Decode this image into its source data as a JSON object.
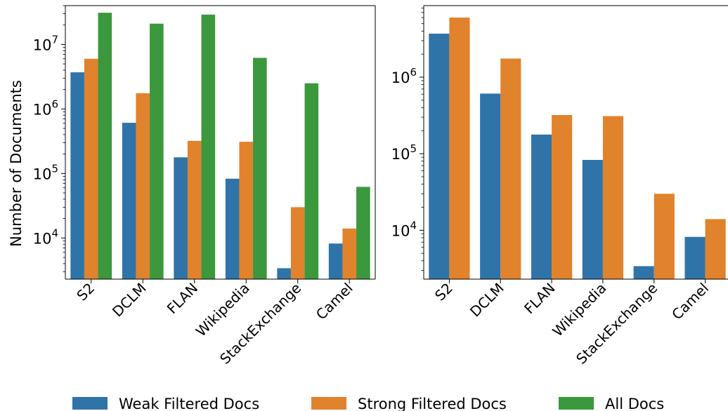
{
  "chart_data": [
    {
      "type": "bar",
      "yscale": "log",
      "ylabel": "Number of Documents",
      "ylim": [
        2300,
        40000000
      ],
      "yticks": [
        {
          "value": 10000,
          "base": "10",
          "exp": "4"
        },
        {
          "value": 100000,
          "base": "10",
          "exp": "5"
        },
        {
          "value": 1000000,
          "base": "10",
          "exp": "6"
        },
        {
          "value": 10000000,
          "base": "10",
          "exp": "7"
        }
      ],
      "categories": [
        "S2",
        "DCLM",
        "FLAN",
        "Wikipedia",
        "StackExchange",
        "Camel"
      ],
      "series": [
        {
          "name": "Weak Filtered Docs",
          "color": "#2f74a8",
          "values": [
            3700000,
            610000,
            178000,
            83000,
            3400,
            8200
          ]
        },
        {
          "name": "Strong Filtered Docs",
          "color": "#e1822c",
          "values": [
            6000000,
            1750000,
            320000,
            310000,
            30000,
            14000
          ]
        },
        {
          "name": "All Docs",
          "color": "#3b983c",
          "values": [
            31000000,
            21000000,
            29000000,
            6200000,
            2500000,
            62000
          ]
        }
      ]
    },
    {
      "type": "bar",
      "yscale": "log",
      "ylabel": "",
      "ylim": [
        2300,
        8600000
      ],
      "yticks": [
        {
          "value": 10000,
          "base": "10",
          "exp": "4"
        },
        {
          "value": 100000,
          "base": "10",
          "exp": "5"
        },
        {
          "value": 1000000,
          "base": "10",
          "exp": "6"
        }
      ],
      "categories": [
        "S2",
        "DCLM",
        "FLAN",
        "Wikipedia",
        "StackExchange",
        "Camel"
      ],
      "series": [
        {
          "name": "Weak Filtered Docs",
          "color": "#2f74a8",
          "values": [
            3700000,
            610000,
            178000,
            83000,
            3400,
            8200
          ]
        },
        {
          "name": "Strong Filtered Docs",
          "color": "#e1822c",
          "values": [
            6000000,
            1750000,
            320000,
            310000,
            30000,
            14000
          ]
        }
      ]
    }
  ],
  "legend": {
    "position": "bottom",
    "items": [
      {
        "label": "Weak Filtered Docs",
        "color": "#2f74a8"
      },
      {
        "label": "Strong Filtered Docs",
        "color": "#e1822c"
      },
      {
        "label": "All Docs",
        "color": "#3b983c"
      }
    ]
  }
}
